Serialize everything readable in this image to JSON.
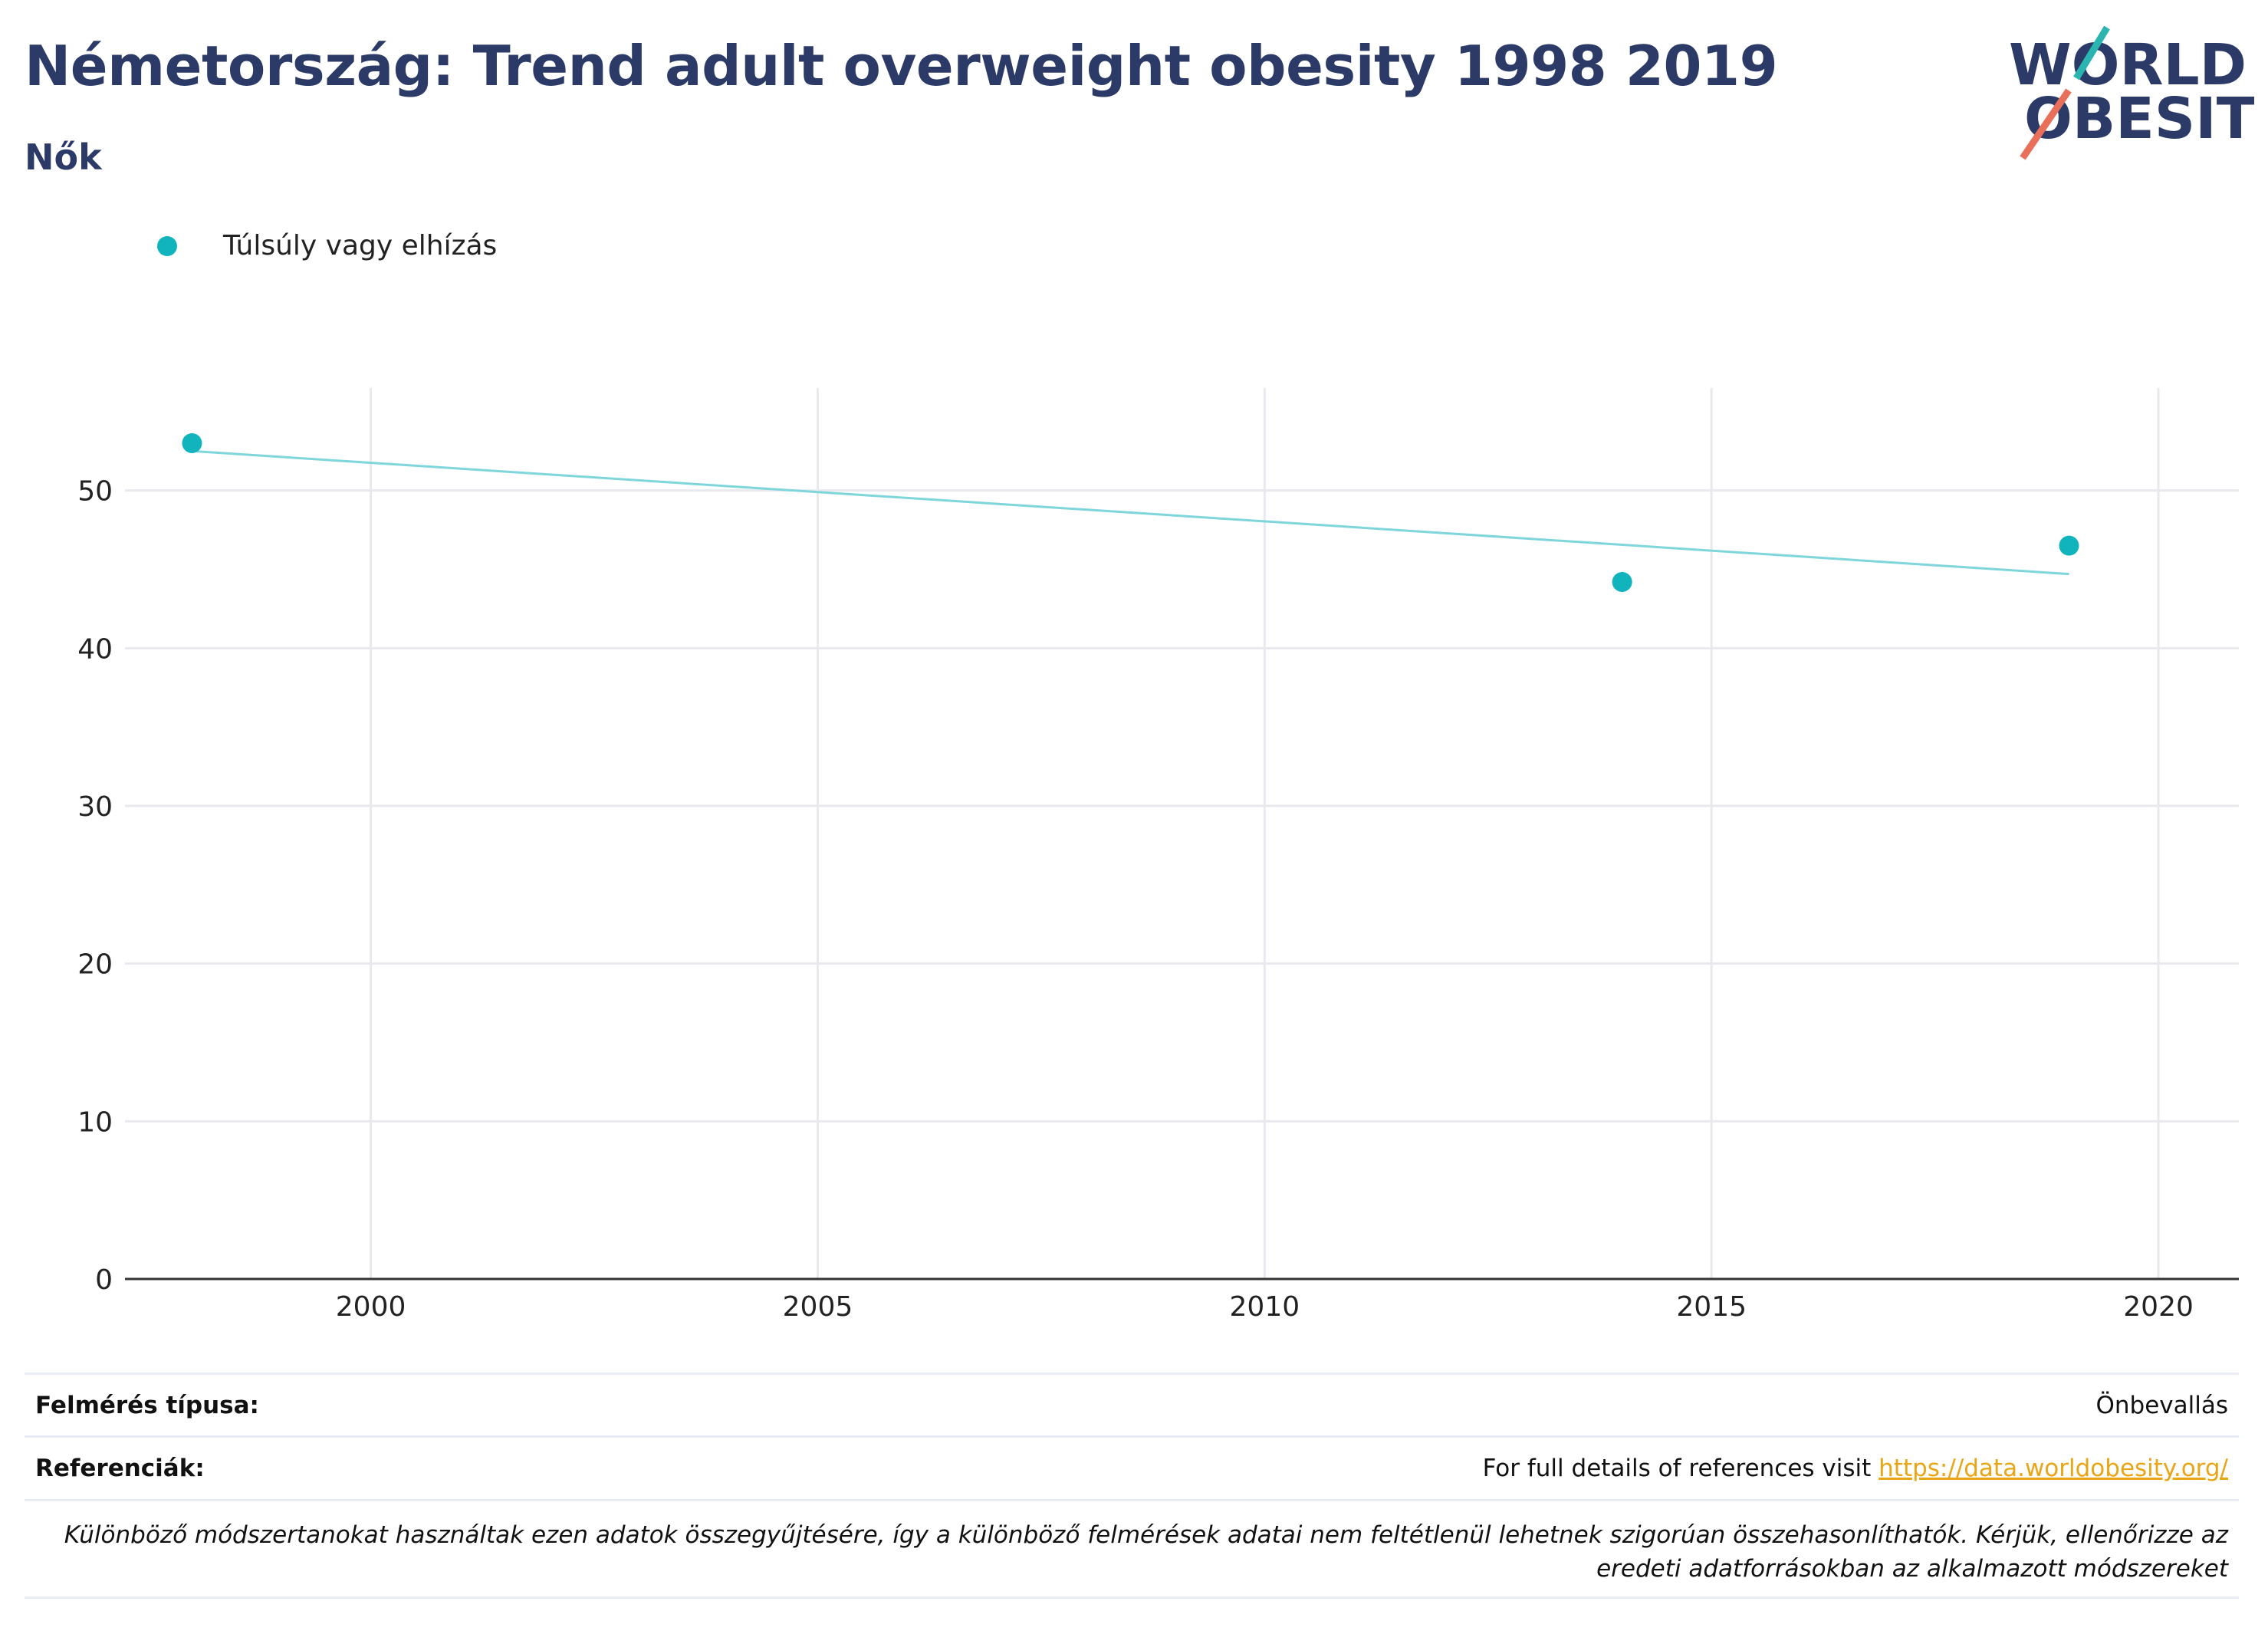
{
  "header": {
    "title": "Németország: Trend adult overweight obesity 1998 2019",
    "subtitle": "Nők"
  },
  "logo": {
    "line1": "WORLD",
    "line2": "OBESITY",
    "color_text": "#2b3a67",
    "color_accent1": "#2bb5b0",
    "color_accent2": "#e8705a"
  },
  "legend": {
    "label": "Túlsúly vagy elhízás",
    "color": "#11b4bd"
  },
  "chart_data": {
    "type": "scatter",
    "title": "Németország: Trend adult overweight obesity 1998 2019",
    "subtitle": "Nők",
    "xlabel": "",
    "ylabel": "",
    "xlim": [
      1997.25,
      2020.9
    ],
    "ylim": [
      0,
      56.5
    ],
    "x_ticks": [
      2000,
      2005,
      2010,
      2015,
      2020
    ],
    "y_ticks": [
      0,
      10,
      20,
      30,
      40,
      50
    ],
    "grid": true,
    "legend_position": "top-left",
    "series": [
      {
        "name": "Túlsúly vagy elhízás",
        "color": "#11b4bd",
        "points": [
          {
            "x": 1998,
            "y": 53.0
          },
          {
            "x": 2014,
            "y": 44.2
          },
          {
            "x": 2019,
            "y": 46.5
          }
        ]
      }
    ],
    "trendline": {
      "color": "#7fd6da",
      "x": [
        1998,
        2019
      ],
      "y": [
        52.5,
        44.7
      ]
    }
  },
  "footer": {
    "survey_type_label": "Felmérés típusa:",
    "survey_type_value": "Önbevallás",
    "references_label": "Referenciák:",
    "references_text": "For full details of references visit ",
    "references_link": "https://data.worldobesity.org/",
    "note": "Különböző módszertanokat használtak ezen adatok összegyűjtésére, így a különböző felmérések adatai nem feltétlenül lehetnek szigorúan összehasonlíthatók. Kérjük, ellenőrizze az eredeti adatforrásokban az alkalmazott módszereket"
  }
}
